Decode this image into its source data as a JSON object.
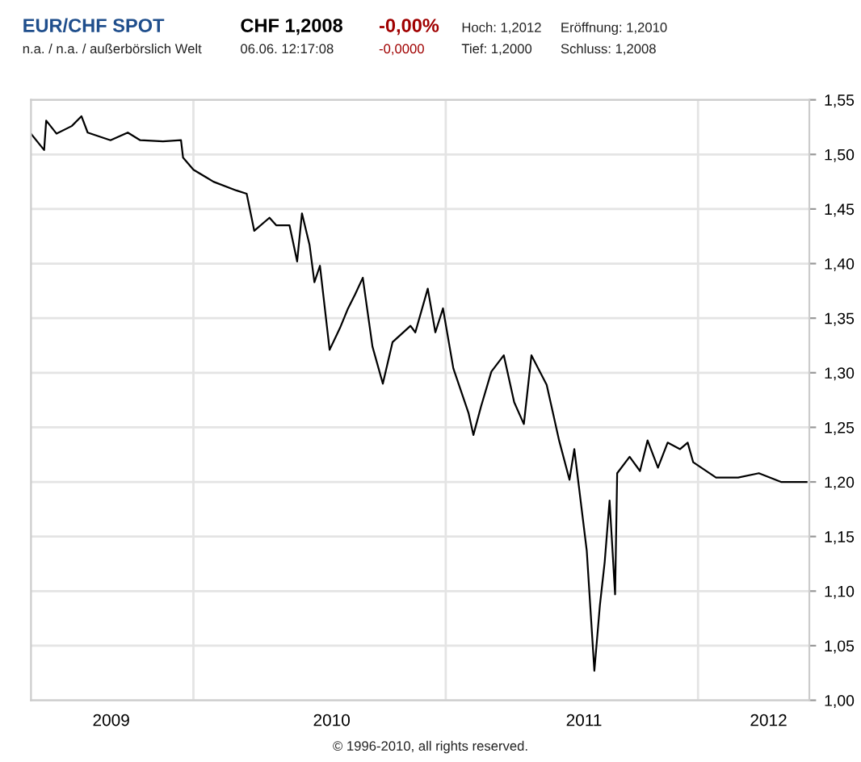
{
  "chart_data": {
    "type": "line",
    "title": "EUR/CHF SPOT",
    "subtitle": "n.a. / n.a. / außerbörslich Welt",
    "annotations": [
      "CHF 1,2008",
      "06.06. 12:17:08",
      "-0,00%",
      "-0,0000",
      "Hoch: 1,2012",
      "Tief: 1,2000",
      "Eröffnung: 1,2010",
      "Schluss: 1,2008",
      "© 1996-2010, all rights reserved."
    ],
    "series": [
      {
        "color": "#000000",
        "x": [
          "2009-05-11",
          "2009-05-30",
          "2009-06-02",
          "2009-06-17",
          "2009-07-09",
          "2009-07-23",
          "2009-08-01",
          "2009-09-03",
          "2009-09-28",
          "2009-10-16",
          "2009-11-18",
          "2009-12-14",
          "2009-12-17",
          "2010-01-01",
          "2010-01-30",
          "2010-03-04",
          "2010-03-19",
          "2010-03-30",
          "2010-04-21",
          "2010-05-01",
          "2010-05-20",
          "2010-05-31",
          "2010-06-07",
          "2010-06-18",
          "2010-06-25",
          "2010-07-03",
          "2010-07-17",
          "2010-08-01",
          "2010-08-12",
          "2010-08-23",
          "2010-09-03",
          "2010-09-17",
          "2010-10-02",
          "2010-10-16",
          "2010-11-11",
          "2010-11-18",
          "2010-12-06",
          "2010-12-17",
          "2010-12-28",
          "2011-01-12",
          "2011-02-03",
          "2011-02-10",
          "2011-02-21",
          "2011-03-08",
          "2011-03-26",
          "2011-04-10",
          "2011-04-24",
          "2011-05-05",
          "2011-05-27",
          "2011-06-14",
          "2011-06-29",
          "2011-07-06",
          "2011-07-24",
          "2011-08-04",
          "2011-08-12",
          "2011-08-19",
          "2011-08-26",
          "2011-09-03",
          "2011-09-06",
          "2011-09-24",
          "2011-10-09",
          "2011-10-20",
          "2011-11-04",
          "2011-11-18",
          "2011-12-06",
          "2011-12-17",
          "2011-12-25",
          "2012-01-27",
          "2012-02-28",
          "2012-03-29",
          "2012-04-30",
          "2012-06-06"
        ],
        "values": [
          1.519,
          1.504,
          1.531,
          1.519,
          1.526,
          1.535,
          1.52,
          1.513,
          1.52,
          1.513,
          1.512,
          1.513,
          1.497,
          1.486,
          1.475,
          1.467,
          1.464,
          1.43,
          1.442,
          1.435,
          1.435,
          1.402,
          1.446,
          1.417,
          1.383,
          1.398,
          1.321,
          1.341,
          1.358,
          1.372,
          1.387,
          1.324,
          1.29,
          1.328,
          1.343,
          1.337,
          1.377,
          1.337,
          1.359,
          1.304,
          1.263,
          1.243,
          1.269,
          1.301,
          1.316,
          1.273,
          1.253,
          1.316,
          1.289,
          1.238,
          1.202,
          1.23,
          1.137,
          1.027,
          1.087,
          1.127,
          1.183,
          1.097,
          1.208,
          1.223,
          1.21,
          1.238,
          1.213,
          1.236,
          1.23,
          1.236,
          1.218,
          1.204,
          1.204,
          1.208,
          1.2,
          1.2
        ]
      }
    ],
    "xlim": [
      "2009-05-11",
      "2012-06-10"
    ],
    "xticks": [
      {
        "value": "2010-01-01",
        "label": null
      },
      {
        "value": "2011-01-01",
        "label": null
      },
      {
        "value": "2012-01-01",
        "label": null
      },
      {
        "value": "2009-09-04",
        "label": "2009"
      },
      {
        "value": "2010-07-20",
        "label": "2010"
      },
      {
        "value": "2011-07-20",
        "label": "2011"
      },
      {
        "value": "2012-04-12",
        "label": "2012"
      }
    ],
    "ylim": [
      1.0,
      1.55
    ],
    "yticks": [
      {
        "value": 1.0,
        "label": "1,00"
      },
      {
        "value": 1.05,
        "label": "1,05"
      },
      {
        "value": 1.1,
        "label": "1,10"
      },
      {
        "value": 1.15,
        "label": "1,15"
      },
      {
        "value": 1.2,
        "label": "1,20"
      },
      {
        "value": 1.25,
        "label": "1,25"
      },
      {
        "value": 1.3,
        "label": "1,30"
      },
      {
        "value": 1.35,
        "label": "1,35"
      },
      {
        "value": 1.4,
        "label": "1,40"
      },
      {
        "value": 1.45,
        "label": "1,45"
      },
      {
        "value": 1.5,
        "label": "1,50"
      },
      {
        "value": 1.55,
        "label": "1,55"
      }
    ],
    "grid": true
  }
}
